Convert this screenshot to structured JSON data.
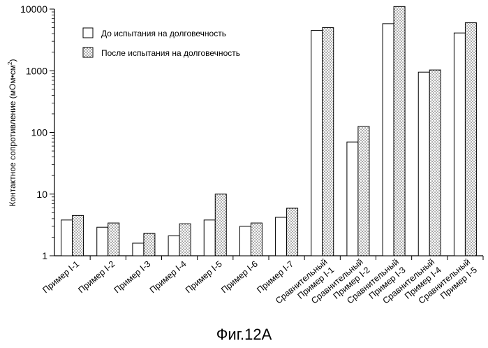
{
  "chart_data": {
    "type": "bar",
    "yscale": "log",
    "ylim": [
      1,
      10000
    ],
    "ylabel": "Контактное сопротивление (мОм•см",
    "ylabel_sup": "2",
    "ylabel_end": ")",
    "yticks": [
      "1",
      "10",
      "100",
      "1000",
      "10000"
    ],
    "categories": [
      {
        "line1": "Пример",
        "line2": "Ⅰ-1"
      },
      {
        "line1": "Пример",
        "line2": "Ⅰ-2"
      },
      {
        "line1": "Пример",
        "line2": "Ⅰ-3"
      },
      {
        "line1": "Пример",
        "line2": "Ⅰ-4"
      },
      {
        "line1": "Пример",
        "line2": "Ⅰ-5"
      },
      {
        "line1": "Пример",
        "line2": "Ⅰ-6"
      },
      {
        "line1": "Пример",
        "line2": "Ⅰ-7"
      },
      {
        "line1": "Сравнительный",
        "line2": "Пример Ⅰ-1"
      },
      {
        "line1": "Сравнительный",
        "line2": "Пример Ⅰ-2"
      },
      {
        "line1": "Сравнительный",
        "line2": "Пример Ⅰ-3"
      },
      {
        "line1": "Сравнительный",
        "line2": "Пример Ⅰ-4"
      },
      {
        "line1": "Сравнительный",
        "line2": "Пример Ⅰ-5"
      }
    ],
    "series": [
      {
        "name": "До испытания на долговечность",
        "fill": "white",
        "values": [
          3.8,
          2.9,
          1.6,
          2.1,
          3.8,
          3.0,
          4.2,
          4500,
          70,
          5800,
          950,
          4100
        ]
      },
      {
        "name": "После испытания на долговечность",
        "fill": "dotted",
        "values": [
          4.5,
          3.4,
          2.3,
          3.3,
          10,
          3.4,
          5.9,
          5000,
          125,
          11000,
          1030,
          6000
        ]
      }
    ],
    "legend_position": "top-left"
  },
  "caption": "Фиг.12А"
}
